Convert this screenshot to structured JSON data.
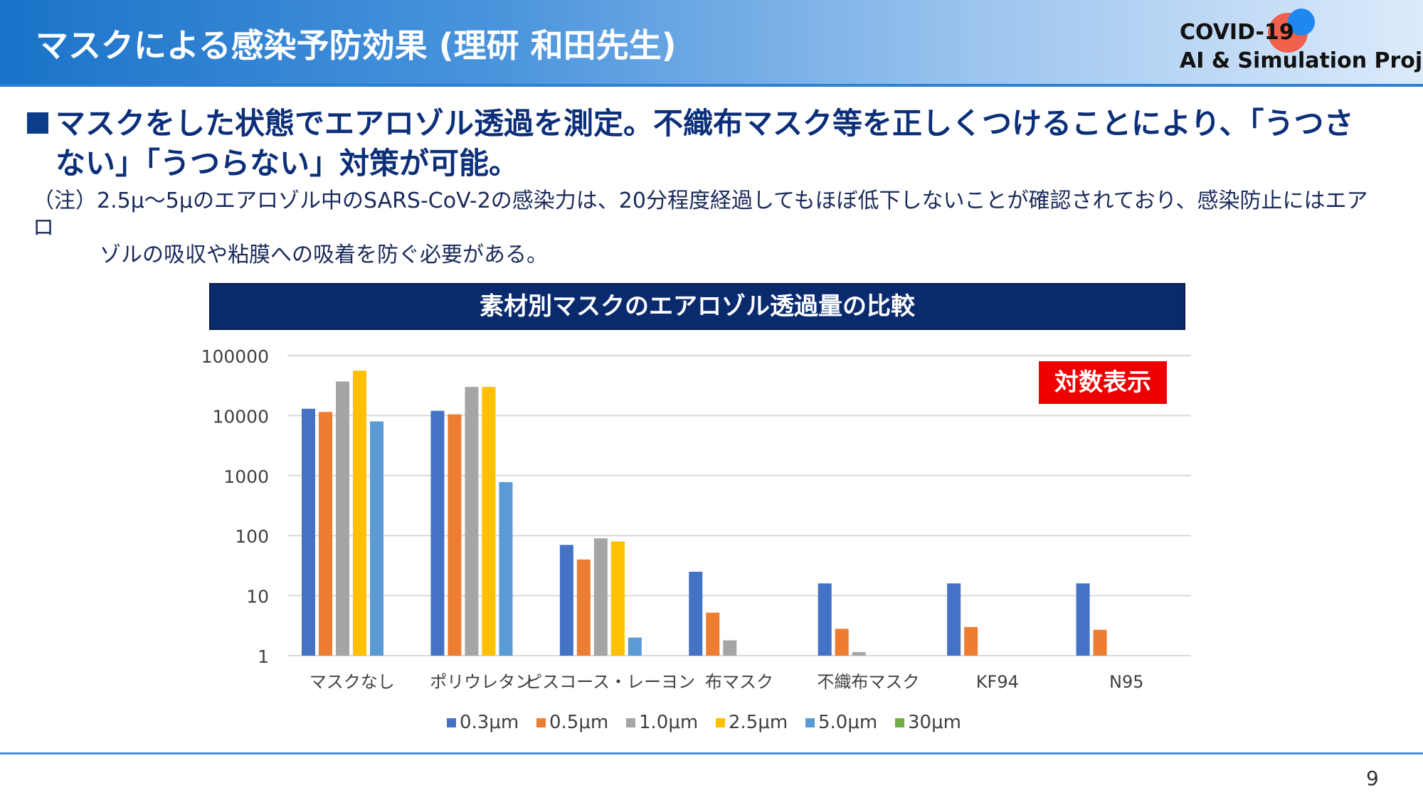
{
  "header": {
    "title": "マスクによる感染予防効果 (理研 和田先生)",
    "project_line1": "COVID-19",
    "project_line2": "AI & Simulation Project"
  },
  "headline": "マスクをした状態でエアロゾル透過を測定。不織布マスク等を正しくつけることにより、「うつさない」「うつらない」対策が可能。",
  "note": {
    "line1": "（注）2.5μ～5μのエアロゾル中のSARS-CoV-2の感染力は、20分程度経過してもほぼ低下しないことが確認されており、感染防止にはエアロ",
    "line2": "ゾルの吸収や粘膜への吸着を防ぐ必要がある。"
  },
  "log_badge": "対数表示",
  "page_number": "9",
  "colors": {
    "0.3μm": "#4472c4",
    "0.5μm": "#ed7d31",
    "1.0μm": "#a5a5a5",
    "2.5μm": "#ffc000",
    "5.0μm": "#5b9bd5",
    "30μm": "#70ad47"
  },
  "chart_data": {
    "type": "bar",
    "title": "素材別マスクのエアロゾル透過量の比較",
    "yscale": "log",
    "ylim": [
      1,
      100000
    ],
    "yticks": [
      "100000",
      "10000",
      "1000",
      "100",
      "10",
      "1"
    ],
    "grid": true,
    "legend_position": "bottom",
    "categories": [
      "マスクなし",
      "ポリウレタン",
      "ピスコース・レーヨン",
      "布マスク",
      "不織布マスク",
      "KF94",
      "N95"
    ],
    "series": [
      {
        "name": "0.3μm",
        "values": [
          13000,
          12000,
          70,
          25,
          16,
          16,
          16
        ]
      },
      {
        "name": "0.5μm",
        "values": [
          11500,
          10500,
          40,
          5.2,
          2.8,
          3.0,
          2.7
        ]
      },
      {
        "name": "1.0μm",
        "values": [
          37000,
          30000,
          90,
          1.8,
          1.15,
          null,
          null
        ]
      },
      {
        "name": "2.5μm",
        "values": [
          56000,
          30000,
          80,
          null,
          null,
          null,
          null
        ]
      },
      {
        "name": "5.0μm",
        "values": [
          8000,
          780,
          2.0,
          null,
          null,
          null,
          null
        ]
      },
      {
        "name": "30μm",
        "values": [
          null,
          null,
          null,
          null,
          null,
          null,
          null
        ]
      }
    ]
  }
}
